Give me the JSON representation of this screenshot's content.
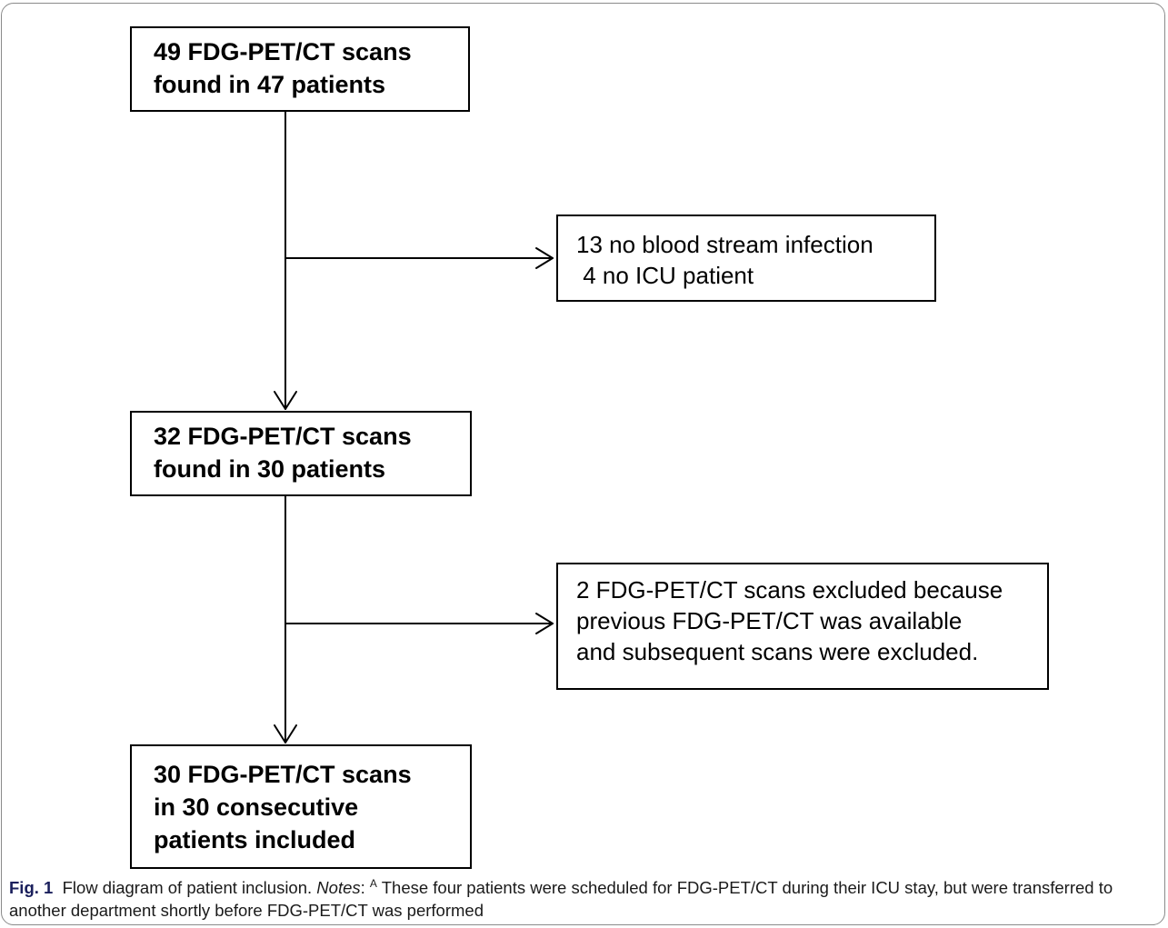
{
  "boxes": {
    "start": {
      "lines": [
        "49 FDG-PET/CT scans",
        "found in 47 patients"
      ]
    },
    "exclusion1": {
      "lines": [
        "13 no blood stream infection",
        " 4 no ICU patient"
      ]
    },
    "middle": {
      "lines": [
        "32 FDG-PET/CT scans",
        "found in 30 patients"
      ]
    },
    "exclusion2": {
      "lines": [
        "2 FDG-PET/CT scans excluded because",
        "previous FDG-PET/CT was available",
        "and subsequent scans were excluded."
      ]
    },
    "final": {
      "lines": [
        "30 FDG-PET/CT scans",
        "in 30 consecutive",
        "patients included"
      ]
    }
  },
  "caption": {
    "fig_label": "Fig. 1",
    "title": "Flow diagram of patient inclusion.",
    "notes_label": "Notes",
    "superscript": "A",
    "text": "These four patients were scheduled for FDG-PET/CT during their ICU stay, but were transferred to another department shortly before FDG-PET/CT was performed"
  }
}
